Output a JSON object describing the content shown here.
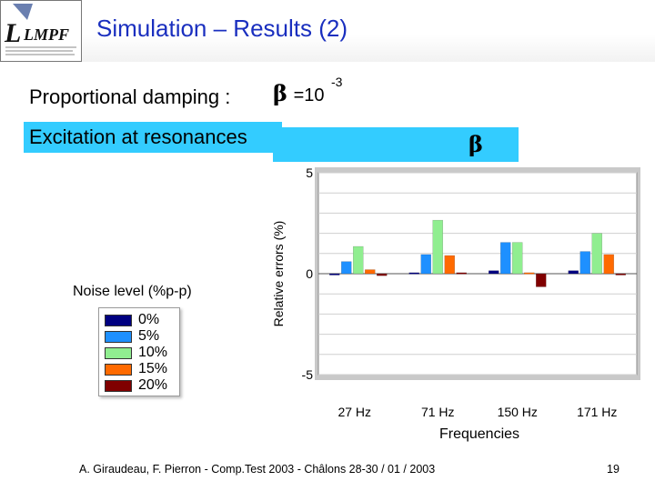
{
  "slide": {
    "title": "Simulation – Results (2)",
    "damping_label": "Proportional damping :",
    "beta_symbol": "β",
    "beta_eq": "=10",
    "beta_exponent": "-3",
    "excitation_label": "Excitation at resonances",
    "beta_box_symbol": "β",
    "noise_level_label": "Noise level (%p-p)",
    "footer": "A. Giraudeau,  F. Pierron  -  Comp.Test 2003  -  Châlons 28-30 / 01 / 2003",
    "page_number": "19"
  },
  "logo": {
    "text": "LMPF"
  },
  "colors": {
    "title": "#1a2fbf",
    "highlight": "#33ccff",
    "series": [
      "#000080",
      "#1e90ff",
      "#90ee90",
      "#ff6a00",
      "#800000"
    ]
  },
  "chart_data": {
    "type": "bar",
    "categories": [
      "27 Hz",
      "71 Hz",
      "150 Hz",
      "171 Hz"
    ],
    "xlabel": "Frequencies",
    "ylabel": "Relative errors (%)",
    "ylim": [
      -5,
      5
    ],
    "yticks": [
      "5",
      "0",
      "-5"
    ],
    "grid": true,
    "legend_title": "Noise level (%p-p)",
    "legend_position": "left",
    "series": [
      {
        "name": "0%",
        "values": [
          0.0,
          0.05,
          0.15,
          0.15
        ]
      },
      {
        "name": "5%",
        "values": [
          0.6,
          0.95,
          1.55,
          1.1
        ]
      },
      {
        "name": "10%",
        "values": [
          1.35,
          2.65,
          1.55,
          2.0
        ]
      },
      {
        "name": "15%",
        "values": [
          0.2,
          0.9,
          0.05,
          0.95
        ]
      },
      {
        "name": "20%",
        "values": [
          -0.1,
          0.05,
          -0.65,
          0.0
        ]
      }
    ]
  }
}
